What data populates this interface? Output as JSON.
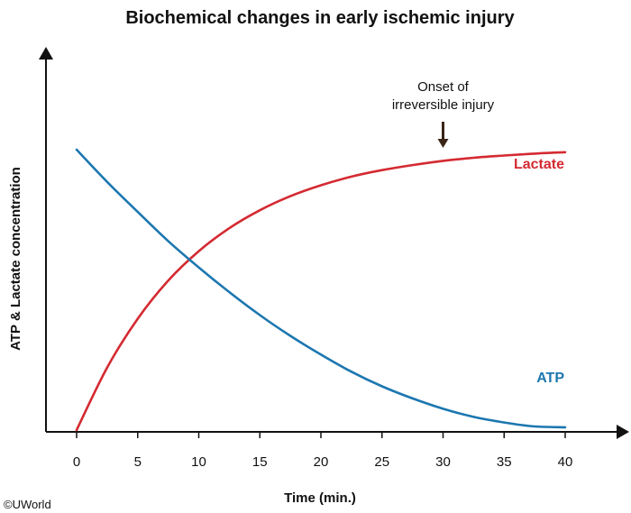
{
  "chart_data": {
    "type": "line",
    "title": "Biochemical changes in early ischemic injury",
    "xlabel": "Time (min.)",
    "ylabel": "ATP & Lactate concentration",
    "xlim": [
      0,
      40
    ],
    "x_ticks": [
      0,
      5,
      10,
      15,
      20,
      25,
      30,
      35,
      40
    ],
    "grid": false,
    "series": [
      {
        "name": "Lactate",
        "color": "#d42a32",
        "x": [
          0,
          2.5,
          5,
          7.5,
          10,
          12.5,
          15,
          17.5,
          20,
          22.5,
          25,
          27.5,
          30,
          32.5,
          35,
          37.5,
          40
        ],
        "y": [
          0.0,
          22.3,
          39.7,
          53.3,
          63.8,
          72.0,
          78.4,
          83.4,
          87.3,
          90.4,
          92.7,
          94.5,
          96.0,
          97.1,
          97.9,
          98.6,
          99.1
        ]
      },
      {
        "name": "ATP",
        "color": "#1c77b0",
        "x": [
          0,
          2.5,
          5,
          7.5,
          10,
          12.5,
          15,
          17.5,
          20,
          22.5,
          25,
          27.5,
          30,
          32.5,
          35,
          37.5,
          40
        ],
        "y": [
          100,
          88.5,
          77.8,
          67.4,
          58.0,
          49.2,
          41.0,
          33.6,
          26.9,
          20.8,
          15.6,
          11.3,
          7.6,
          4.7,
          2.7,
          1.3,
          1.0
        ]
      }
    ],
    "annotations": [
      {
        "lines": [
          "Onset of",
          "irreversible injury"
        ],
        "x": 30,
        "marker": "down-arrow"
      }
    ]
  },
  "copyright": "©UWorld"
}
